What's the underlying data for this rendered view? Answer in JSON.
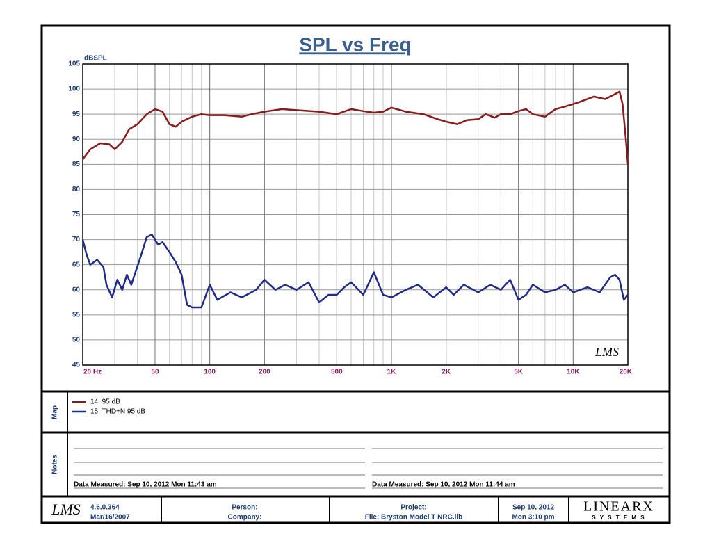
{
  "chart_data": {
    "type": "line",
    "title": "SPL vs Freq",
    "y_label": "dBSPL",
    "x_log": true,
    "grid": true,
    "x_minor_grid": true,
    "xlim": [
      20,
      20000
    ],
    "ylim": [
      45,
      105
    ],
    "yticks": [
      45,
      50,
      55,
      60,
      65,
      70,
      75,
      80,
      85,
      90,
      95,
      100,
      105
    ],
    "xticks": [
      {
        "value": 20,
        "label": "20  Hz"
      },
      50,
      100,
      200,
      500,
      {
        "value": 1000,
        "label": "1K"
      },
      {
        "value": 2000,
        "label": "2K"
      },
      {
        "value": 5000,
        "label": "5K"
      },
      {
        "value": 10000,
        "label": "10K"
      },
      {
        "value": 20000,
        "label": "20K"
      }
    ],
    "watermark": "LMS",
    "series": [
      {
        "name": "14: 95 dB",
        "color": "#8b1a1a",
        "x": [
          20,
          22,
          25,
          28,
          30,
          33,
          36,
          40,
          45,
          50,
          55,
          60,
          65,
          70,
          80,
          90,
          100,
          120,
          150,
          170,
          200,
          250,
          300,
          400,
          500,
          600,
          700,
          800,
          900,
          1000,
          1200,
          1500,
          1800,
          2000,
          2300,
          2600,
          3000,
          3300,
          3700,
          4000,
          4500,
          5000,
          5500,
          6000,
          7000,
          8000,
          9000,
          10000,
          11000,
          13000,
          15000,
          17000,
          18000,
          18700,
          19500,
          20000
        ],
        "values": [
          86,
          88,
          89.2,
          89,
          88,
          89.5,
          92,
          93,
          95,
          96,
          95.5,
          93,
          92.5,
          93.5,
          94.5,
          95,
          94.8,
          94.8,
          94.5,
          95,
          95.5,
          96,
          95.8,
          95.5,
          95,
          96,
          95.6,
          95.3,
          95.5,
          96.3,
          95.5,
          95,
          94,
          93.5,
          93,
          93.8,
          94,
          95,
          94.3,
          95,
          95,
          95.6,
          96,
          95,
          94.5,
          96,
          96.5,
          97,
          97.5,
          98.5,
          98,
          99,
          99.5,
          97,
          90,
          85
        ]
      },
      {
        "name": "15: THD+N 95 dB",
        "color": "#1f2a8a",
        "x": [
          20,
          21,
          22,
          24,
          26,
          27,
          29,
          31,
          33,
          35,
          37,
          42,
          45,
          48,
          52,
          55,
          60,
          65,
          70,
          75,
          80,
          90,
          100,
          110,
          130,
          150,
          180,
          200,
          230,
          260,
          300,
          350,
          400,
          450,
          500,
          550,
          600,
          700,
          800,
          900,
          1000,
          1200,
          1400,
          1700,
          2000,
          2200,
          2500,
          3000,
          3500,
          4000,
          4500,
          5000,
          5500,
          6000,
          7000,
          8000,
          9000,
          10000,
          12000,
          14000,
          16000,
          17000,
          18000,
          19000,
          20000
        ],
        "values": [
          70,
          67,
          65,
          66,
          64.5,
          61,
          58.5,
          62,
          60,
          63,
          61,
          67,
          70.5,
          71,
          69,
          69.5,
          67.5,
          65.5,
          63,
          57,
          56.5,
          56.5,
          61,
          58,
          59.5,
          58.5,
          60,
          62,
          60,
          61,
          60,
          61.5,
          57.5,
          59,
          59,
          60.5,
          61.5,
          59,
          63.5,
          59,
          58.5,
          60,
          61,
          58.5,
          60.5,
          59,
          61,
          59.5,
          61,
          60,
          62,
          58,
          59,
          61,
          59.5,
          60,
          61,
          59.5,
          60.5,
          59.5,
          62.5,
          63,
          62,
          58,
          59
        ]
      }
    ]
  },
  "map_label": "Map",
  "notes": {
    "label": "Notes",
    "measured": [
      "Data Measured: Sep 10, 2012  Mon 11:43 am",
      "Data Measured: Sep 10, 2012  Mon 11:44 am"
    ]
  },
  "footer": {
    "logo": "LMS",
    "version": "4.6.0.364",
    "build_date": "Mar/16/2007",
    "person": "Person:",
    "company": "Company:",
    "project": "Project:",
    "file": "File: Bryston Model T NRC.lib",
    "date": "Sep 10, 2012",
    "time": "Mon  3:10 pm",
    "brand": "LINEARX",
    "brand_sub": "S Y S T E M S"
  }
}
